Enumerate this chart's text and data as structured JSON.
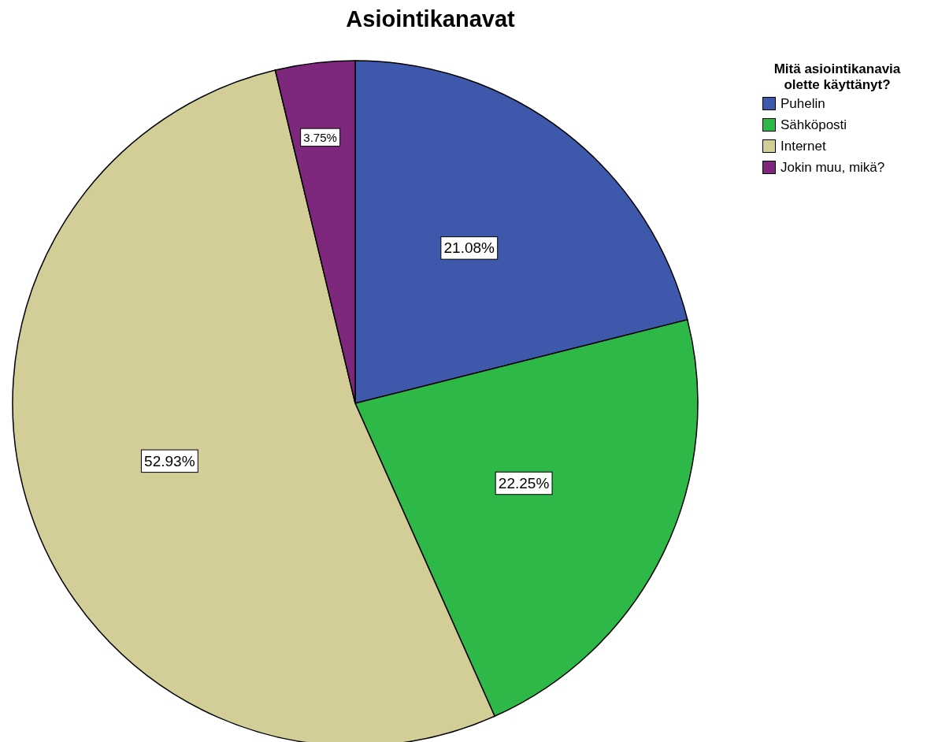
{
  "chart_data": {
    "type": "pie",
    "title": "Asiointikanavat",
    "legend_title": "Mitä asiointikanavia olette käyttänyt?",
    "categories": [
      "Puhelin",
      "Sähköposti",
      "Internet",
      "Jokin muu, mikä?"
    ],
    "values": [
      21.08,
      22.25,
      52.93,
      3.75
    ],
    "colors": [
      "#3e58ac",
      "#2eb848",
      "#d3ce97",
      "#7d287d"
    ],
    "value_labels": [
      "21.08%",
      "22.25%",
      "52.93%",
      "3.75%"
    ],
    "legend": "top right"
  }
}
